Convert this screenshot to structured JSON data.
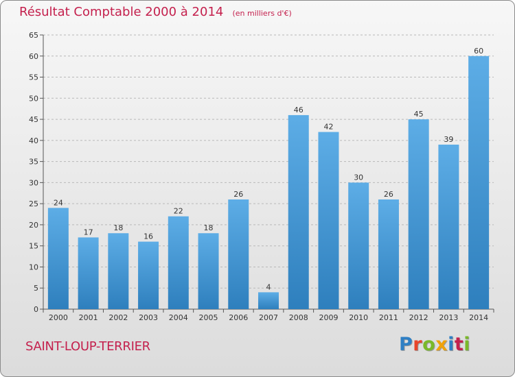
{
  "header": {
    "title": "Résultat Comptable 2000 à 2014",
    "subtitle": "(en milliers d'€)"
  },
  "footer": {
    "commune": "SAINT-LOUP-TERRIER",
    "logo_text": "Proxiti",
    "logo_colors": [
      "#2e7fc4",
      "#e8442a",
      "#7ab929",
      "#f0a30a",
      "#2e7fc4",
      "#c4204d",
      "#7ab929"
    ]
  },
  "colors": {
    "bar_light": "#5dade6",
    "bar_dark": "#2e7fbd",
    "title": "#c4204d",
    "grid": "#b8b8b8"
  },
  "chart_data": {
    "type": "bar",
    "title": "Résultat Comptable 2000 à 2014",
    "ylabel": "en milliers d'€",
    "xlabel": "",
    "categories": [
      "2000",
      "2001",
      "2002",
      "2003",
      "2004",
      "2005",
      "2006",
      "2007",
      "2008",
      "2009",
      "2010",
      "2011",
      "2012",
      "2013",
      "2014"
    ],
    "values": [
      24,
      17,
      18,
      16,
      22,
      18,
      26,
      4,
      46,
      42,
      30,
      26,
      45,
      39,
      60
    ],
    "ylim": [
      0,
      65
    ],
    "yticks": [
      0,
      5,
      10,
      15,
      20,
      25,
      30,
      35,
      40,
      45,
      50,
      55,
      60,
      65
    ],
    "grid": true
  }
}
